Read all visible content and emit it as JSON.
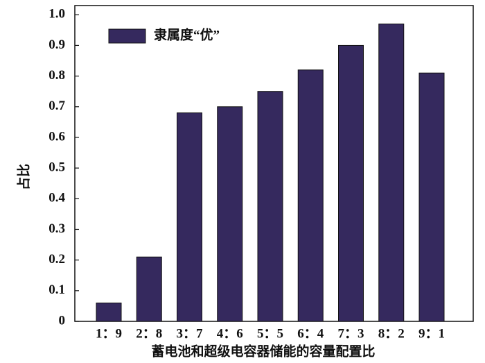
{
  "chart_data": {
    "type": "bar",
    "categories": [
      "1：9",
      "2：8",
      "3：7",
      "4：6",
      "5：5",
      "6：4",
      "7：3",
      "8：2",
      "9：1"
    ],
    "series": [
      {
        "name": "隶属度“优”",
        "color": "#35295e",
        "values": [
          0.06,
          0.21,
          0.68,
          0.7,
          0.75,
          0.82,
          0.9,
          0.97,
          0.81
        ]
      }
    ],
    "xlabel": "蓄电池和超级电容器储能的容量配置比",
    "ylabel": "占比",
    "ylim": [
      0,
      1.03
    ],
    "yticks": [
      0,
      0.1,
      0.2,
      0.3,
      0.4,
      0.5,
      0.6,
      0.7,
      0.8,
      0.9,
      {
        "value": 1,
        "label": "1.0"
      }
    ],
    "grid": false,
    "legend": "upper-left"
  }
}
